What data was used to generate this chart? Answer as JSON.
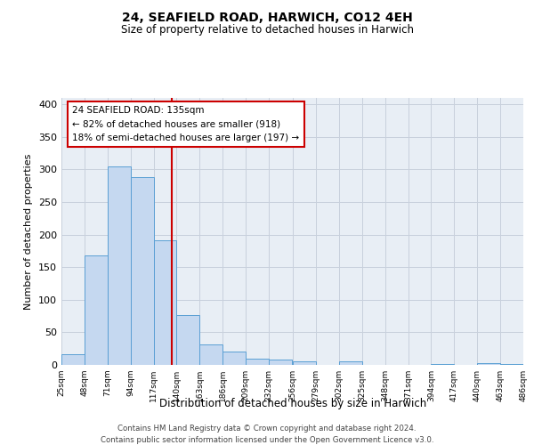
{
  "title": "24, SEAFIELD ROAD, HARWICH, CO12 4EH",
  "subtitle": "Size of property relative to detached houses in Harwich",
  "xlabel": "Distribution of detached houses by size in Harwich",
  "ylabel": "Number of detached properties",
  "bin_edges": [
    25,
    48,
    71,
    94,
    117,
    140,
    163,
    186,
    209,
    232,
    256,
    279,
    302,
    325,
    348,
    371,
    394,
    417,
    440,
    463,
    486
  ],
  "bar_heights": [
    17,
    168,
    305,
    288,
    191,
    77,
    32,
    20,
    9,
    8,
    6,
    0,
    5,
    0,
    0,
    0,
    2,
    0,
    3,
    2
  ],
  "bar_color": "#c5d8f0",
  "bar_edge_color": "#5a9fd4",
  "vline_x": 135,
  "vline_color": "#cc0000",
  "ylim": [
    0,
    410
  ],
  "yticks": [
    0,
    50,
    100,
    150,
    200,
    250,
    300,
    350,
    400
  ],
  "grid_color": "#c8d0dc",
  "bg_color": "#e8eef5",
  "annotation_line1": "24 SEAFIELD ROAD: 135sqm",
  "annotation_line2": "← 82% of detached houses are smaller (918)",
  "annotation_line3": "18% of semi-detached houses are larger (197) →",
  "footer_line1": "Contains HM Land Registry data © Crown copyright and database right 2024.",
  "footer_line2": "Contains public sector information licensed under the Open Government Licence v3.0.",
  "tick_labels": [
    "25sqm",
    "48sqm",
    "71sqm",
    "94sqm",
    "117sqm",
    "140sqm",
    "163sqm",
    "186sqm",
    "209sqm",
    "232sqm",
    "256sqm",
    "279sqm",
    "302sqm",
    "325sqm",
    "348sqm",
    "371sqm",
    "394sqm",
    "417sqm",
    "440sqm",
    "463sqm",
    "486sqm"
  ]
}
